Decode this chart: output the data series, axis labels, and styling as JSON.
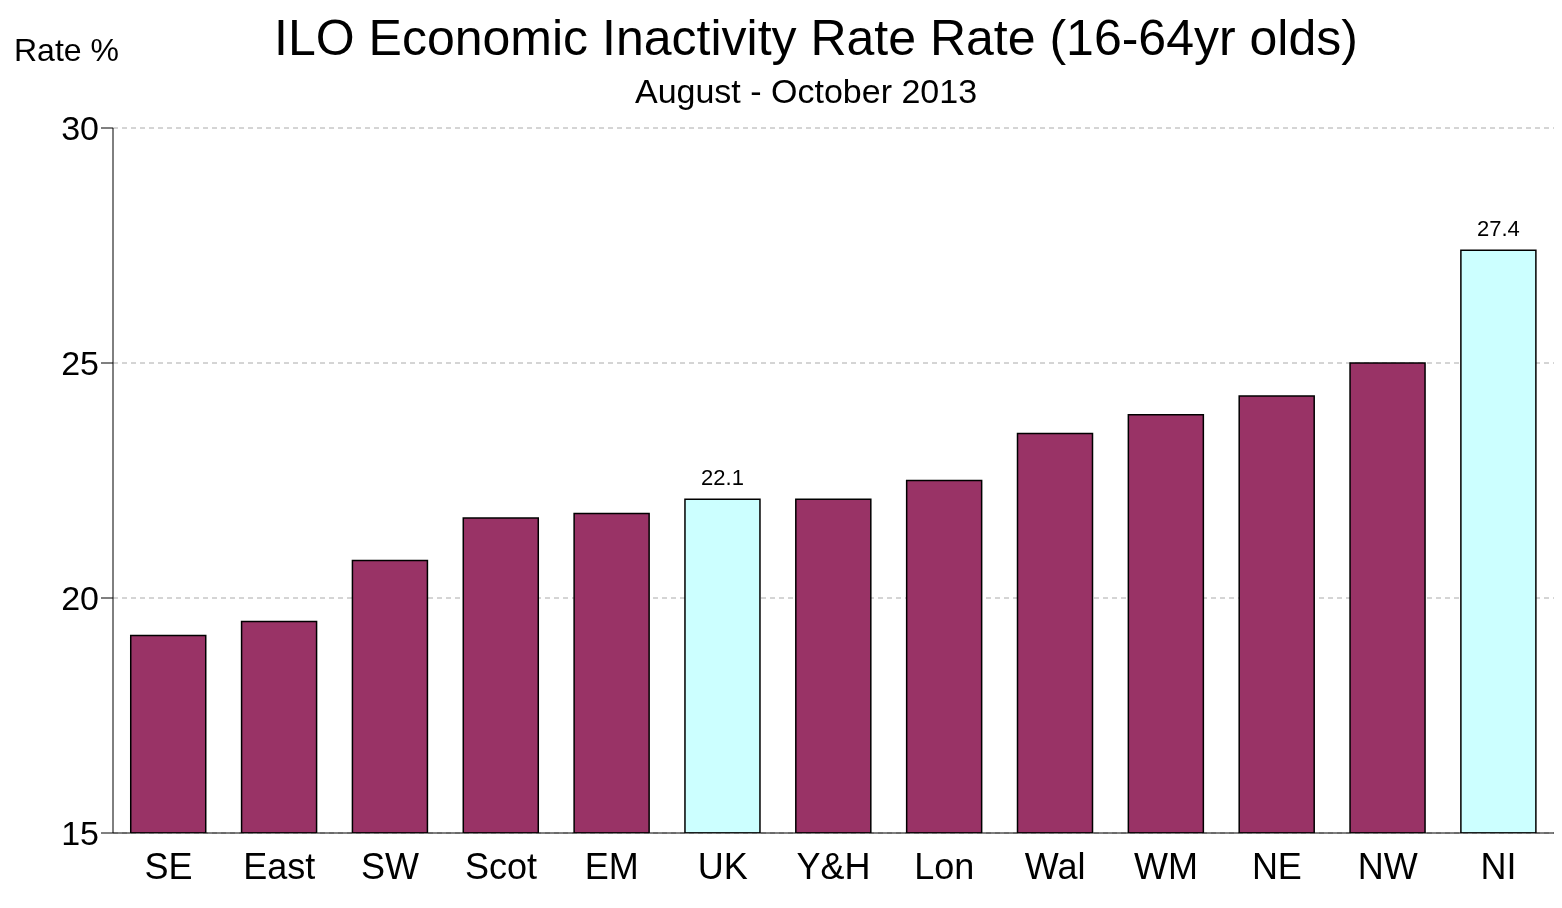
{
  "chart_data": {
    "type": "bar",
    "title": "ILO Economic Inactivity Rate Rate (16-64yr olds)",
    "subtitle": "August - October 2013",
    "ylabel": "Rate %",
    "categories": [
      "SE",
      "East",
      "SW",
      "Scot",
      "EM",
      "UK",
      "Y&H",
      "Lon",
      "Wal",
      "WM",
      "NE",
      "NW",
      "NI"
    ],
    "values": [
      19.2,
      19.5,
      20.8,
      21.7,
      21.8,
      22.1,
      22.1,
      22.5,
      23.5,
      23.9,
      24.3,
      25.0,
      27.4
    ],
    "colors": [
      "#993366",
      "#993366",
      "#993366",
      "#993366",
      "#993366",
      "#ccffff",
      "#993366",
      "#993366",
      "#993366",
      "#993366",
      "#993366",
      "#993366",
      "#ccffff"
    ],
    "value_labels": [
      null,
      null,
      null,
      null,
      null,
      "22.1",
      null,
      null,
      null,
      null,
      null,
      null,
      "27.4"
    ],
    "ylim": [
      15,
      30
    ],
    "yticks": [
      15,
      20,
      25,
      30
    ],
    "grid": "y"
  }
}
